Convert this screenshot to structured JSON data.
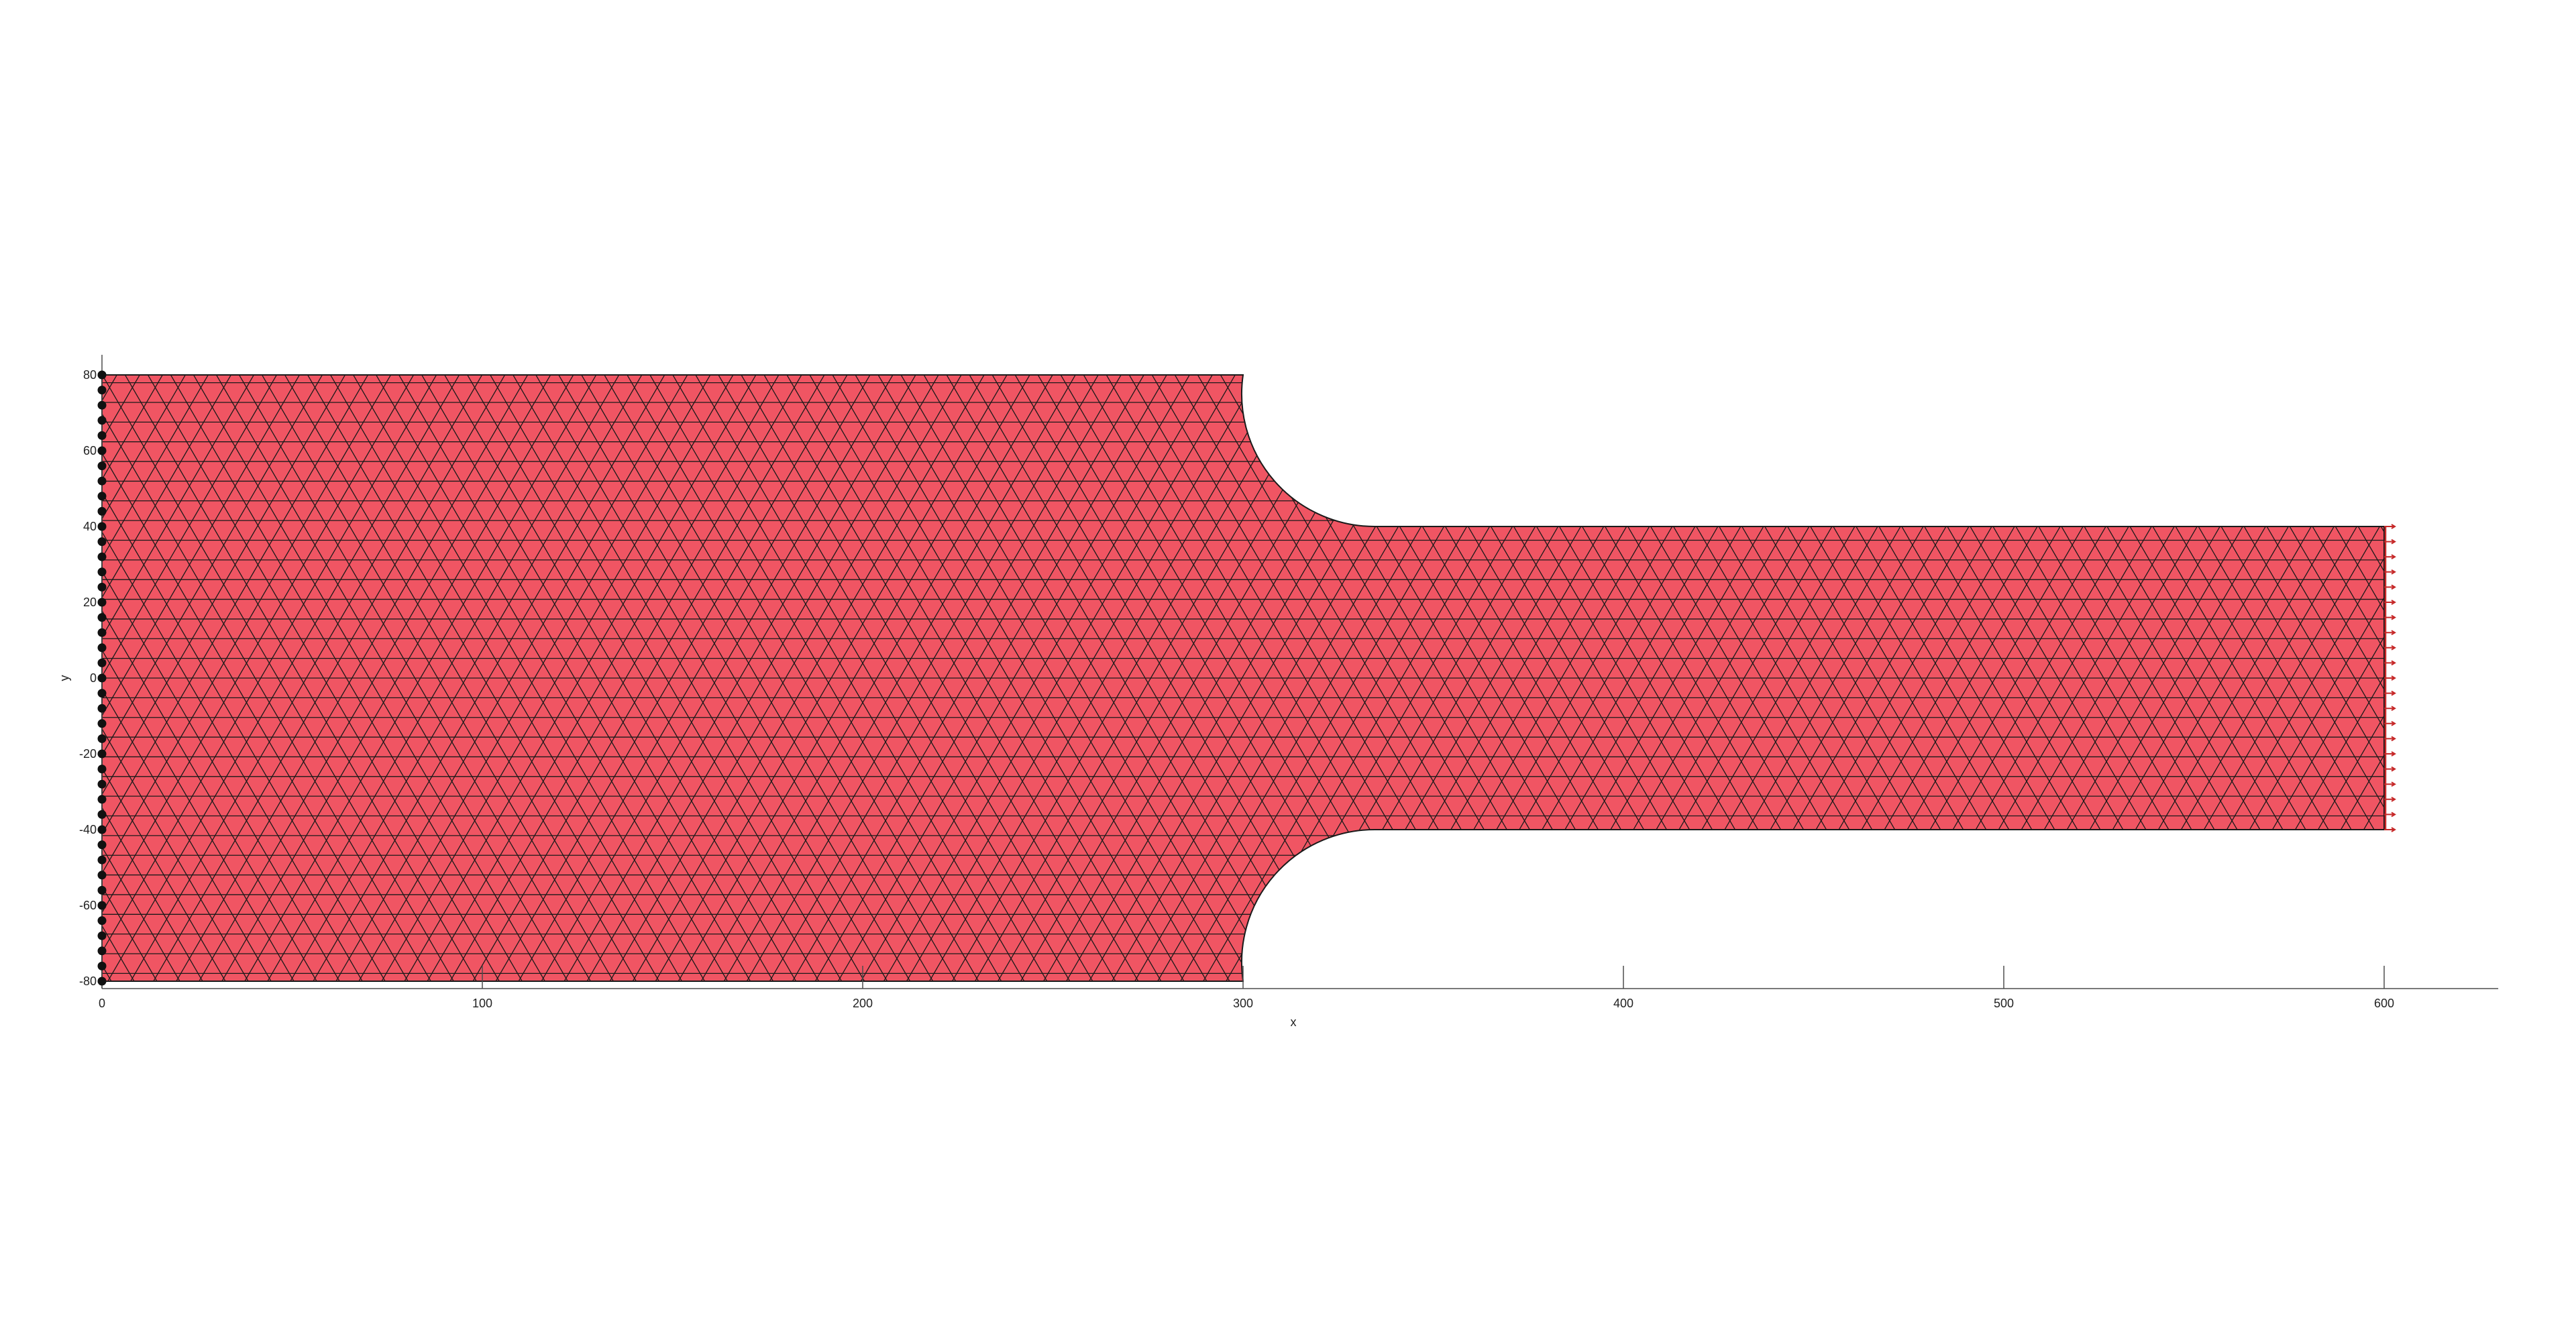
{
  "chart_data": {
    "type": "mesh",
    "title": "",
    "xlabel": "x",
    "ylabel": "y",
    "xlim": [
      0,
      630
    ],
    "ylim": [
      -80,
      80
    ],
    "x_ticks": [
      0,
      100,
      200,
      300,
      400,
      500,
      600
    ],
    "y_ticks": [
      -80,
      -60,
      -40,
      -20,
      0,
      20,
      40,
      60,
      80
    ],
    "geometry": {
      "wide_section": {
        "x_start": 0,
        "x_end": 300,
        "y_min": -80,
        "y_max": 80
      },
      "narrow_section": {
        "x_start": 335,
        "x_end": 600,
        "y_min": -40,
        "y_max": 40
      },
      "fillet_radius": 35
    },
    "mesh_element_size": 6,
    "fill_color": "#f05563",
    "edge_color": "#1a1a1a",
    "boundary_conditions": {
      "fixed_support": {
        "x": 0,
        "y_range": [
          -80,
          80
        ],
        "node_count": 41,
        "marker_color": "#111111"
      },
      "applied_load": {
        "x": 600,
        "y_range": [
          -40,
          40
        ],
        "arrow_count": 21,
        "arrow_color": "#c62828"
      }
    }
  }
}
